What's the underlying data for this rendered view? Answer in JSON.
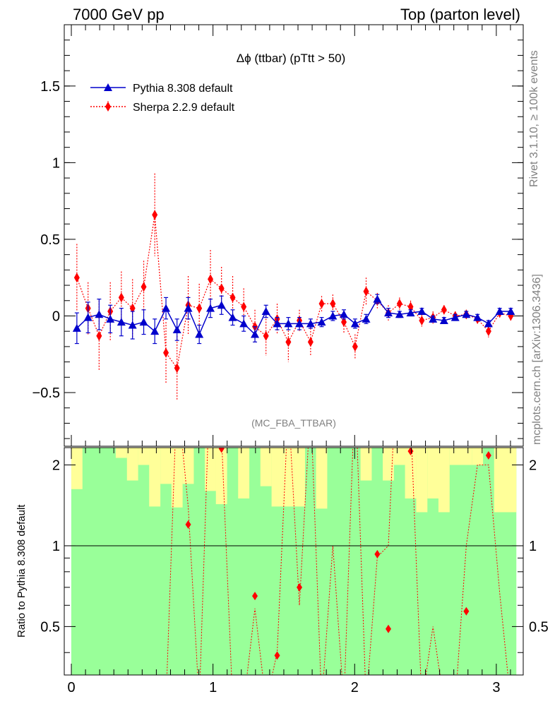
{
  "header": {
    "left": "7000 GeV pp",
    "right": "Top (parton level)"
  },
  "side_labels": {
    "rivet": "Rivet 3.1.10, ≥ 100k events",
    "mcplots": "mcplots.cern.ch [arXiv:1306.3436]"
  },
  "colors": {
    "pythia": "#0000cc",
    "sherpa": "#ff0000",
    "band_green": "#99ff99",
    "band_yellow": "#ffff99"
  },
  "chart_data": [
    {
      "type": "line",
      "title": "Δϕ (ttbar) (pTtt > 50)",
      "annotation": "(MC_FBA_TTBAR)",
      "xlim": [
        -0.05,
        3.19
      ],
      "ylim": [
        -0.85,
        1.9
      ],
      "yticks": [
        -0.5,
        0,
        0.5,
        1,
        1.5
      ],
      "ytick_labels": [
        "−0.5",
        "0",
        "0.5",
        "1",
        "1.5"
      ],
      "legend": {
        "position": "top-left",
        "entries": [
          "Pythia 8.308 default",
          "Sherpa 2.2.9 default"
        ]
      },
      "x": [
        0.039,
        0.118,
        0.196,
        0.275,
        0.353,
        0.432,
        0.511,
        0.589,
        0.668,
        0.746,
        0.825,
        0.903,
        0.982,
        1.06,
        1.139,
        1.217,
        1.296,
        1.374,
        1.453,
        1.532,
        1.61,
        1.689,
        1.767,
        1.846,
        1.924,
        2.003,
        2.081,
        2.16,
        2.238,
        2.317,
        2.395,
        2.474,
        2.553,
        2.631,
        2.71,
        2.788,
        2.867,
        2.945,
        3.024,
        3.102
      ],
      "series": [
        {
          "name": "Pythia 8.308 default",
          "color": "#0000cc",
          "marker": "triangle",
          "values": [
            -0.08,
            -0.01,
            0.01,
            -0.02,
            -0.04,
            -0.06,
            -0.04,
            -0.1,
            0.05,
            -0.09,
            0.05,
            -0.12,
            0.05,
            0.07,
            -0.01,
            -0.05,
            -0.12,
            0.03,
            -0.05,
            -0.05,
            -0.05,
            -0.05,
            -0.04,
            0.0,
            0.01,
            -0.05,
            -0.02,
            0.11,
            0.02,
            0.01,
            0.02,
            0.03,
            -0.02,
            -0.03,
            -0.01,
            0.01,
            -0.01,
            -0.05,
            0.03,
            0.03
          ],
          "errors": [
            0.1,
            0.1,
            0.1,
            0.09,
            0.09,
            0.09,
            0.08,
            0.08,
            0.07,
            0.07,
            0.07,
            0.06,
            0.06,
            0.06,
            0.05,
            0.05,
            0.05,
            0.04,
            0.04,
            0.04,
            0.04,
            0.03,
            0.03,
            0.03,
            0.03,
            0.03,
            0.03,
            0.03,
            0.03,
            0.02,
            0.02,
            0.02,
            0.02,
            0.02,
            0.02,
            0.02,
            0.02,
            0.02,
            0.02,
            0.02
          ]
        },
        {
          "name": "Sherpa 2.2.9 default",
          "color": "#ff0000",
          "marker": "diamond",
          "linestyle": "dotted",
          "values": [
            0.25,
            0.05,
            -0.13,
            0.03,
            0.12,
            0.05,
            0.19,
            0.66,
            -0.24,
            -0.34,
            0.07,
            0.05,
            0.24,
            0.18,
            0.12,
            0.06,
            -0.07,
            -0.13,
            -0.02,
            -0.17,
            -0.03,
            -0.17,
            0.08,
            0.08,
            -0.04,
            -0.2,
            0.16,
            0.1,
            0.02,
            0.08,
            0.06,
            -0.03,
            -0.01,
            0.04,
            0.0,
            0.01,
            -0.02,
            -0.1,
            0.02,
            0.0
          ],
          "errors": [
            0.22,
            0.17,
            0.23,
            0.19,
            0.17,
            0.19,
            0.17,
            0.27,
            0.2,
            0.21,
            0.19,
            0.16,
            0.19,
            0.14,
            0.14,
            0.12,
            0.11,
            0.13,
            0.1,
            0.13,
            0.07,
            0.09,
            0.05,
            0.06,
            0.07,
            0.08,
            0.09,
            0.05,
            0.05,
            0.04,
            0.04,
            0.04,
            0.04,
            0.03,
            0.03,
            0.03,
            0.03,
            0.04,
            0.03,
            0.03
          ]
        }
      ]
    },
    {
      "type": "line",
      "ylabel": "Ratio to Pythia 8.308 default",
      "xlim": [
        -0.05,
        3.19
      ],
      "ylim": [
        0.33,
        2.32
      ],
      "xticks": [
        0,
        1,
        2,
        3
      ],
      "xtick_labels": [
        "0",
        "1",
        "2",
        "3"
      ],
      "yticks": [
        0.5,
        1,
        2
      ],
      "ytick_labels": [
        "0.5",
        "1",
        "2"
      ],
      "reference_line": 1,
      "series": [
        {
          "name": "Sherpa 2.2.9 default",
          "color": "#ff0000",
          "marker": "diamond",
          "linestyle": "dotted",
          "x": [
            0.825,
            1.06,
            1.296,
            1.453,
            1.61,
            2.16,
            2.238,
            2.395,
            2.788,
            2.945
          ],
          "values": [
            1.2,
            2.3,
            0.65,
            0.39,
            0.7,
            0.93,
            0.49,
            2.25,
            0.57,
            2.17
          ]
        }
      ]
    }
  ]
}
